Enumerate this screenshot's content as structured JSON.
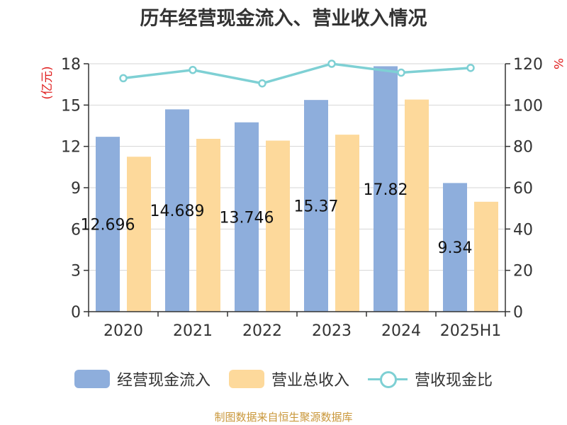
{
  "chart_data": {
    "type": "bar",
    "title": "历年经营现金流入、营业收入情况",
    "categories": [
      "2020",
      "2021",
      "2022",
      "2023",
      "2024",
      "2025H1"
    ],
    "y_left": {
      "label": "(亿元)",
      "range": [
        0,
        18
      ],
      "ticks": [
        "0",
        "3",
        "6",
        "9",
        "12",
        "15",
        "18"
      ]
    },
    "y_right": {
      "label": "%",
      "range": [
        0,
        120
      ],
      "ticks": [
        "0",
        "20",
        "40",
        "60",
        "80",
        "100",
        "120"
      ]
    },
    "series": [
      {
        "name": "经营现金流入",
        "type": "bar",
        "axis": "left",
        "color": "#8eaedc",
        "values": [
          12.696,
          14.689,
          13.746,
          15.37,
          17.82,
          9.34
        ],
        "labels": [
          "12.696",
          "14.689",
          "13.746",
          "15.37",
          "17.82",
          "9.34"
        ]
      },
      {
        "name": "营业总收入",
        "type": "bar",
        "axis": "left",
        "color": "#fdd99b",
        "values": [
          11.25,
          12.55,
          12.42,
          12.85,
          15.4,
          7.98
        ]
      },
      {
        "name": "营收现金比",
        "type": "line",
        "axis": "right",
        "color": "#7ed0d4",
        "values": [
          113,
          117,
          110.5,
          120,
          115.7,
          118
        ]
      }
    ],
    "grid": true,
    "legend_position": "bottom",
    "source": "制图数据来自恒生聚源数据库"
  }
}
